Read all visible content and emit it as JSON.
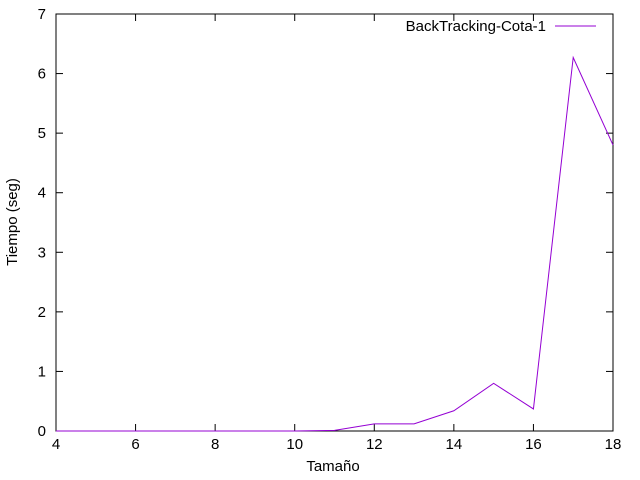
{
  "chart_data": {
    "type": "line",
    "title": "",
    "xlabel": "Tamaño",
    "ylabel": "Tiempo (seg)",
    "xlim": [
      4,
      18
    ],
    "ylim": [
      0,
      7
    ],
    "xticks": [
      4,
      6,
      8,
      10,
      12,
      14,
      16,
      18
    ],
    "yticks": [
      0,
      1,
      2,
      3,
      4,
      5,
      6,
      7
    ],
    "grid": false,
    "legend_position": "top-right",
    "series": [
      {
        "name": "BackTracking-Cota-1",
        "color": "#9400d3",
        "x": [
          4,
          5,
          6,
          7,
          8,
          9,
          10,
          11,
          12,
          13,
          14,
          15,
          16,
          17,
          18
        ],
        "y": [
          0,
          0,
          0,
          0,
          0,
          0,
          0,
          0.01,
          0.12,
          0.12,
          0.34,
          0.8,
          0.37,
          6.27,
          4.8
        ]
      }
    ]
  }
}
